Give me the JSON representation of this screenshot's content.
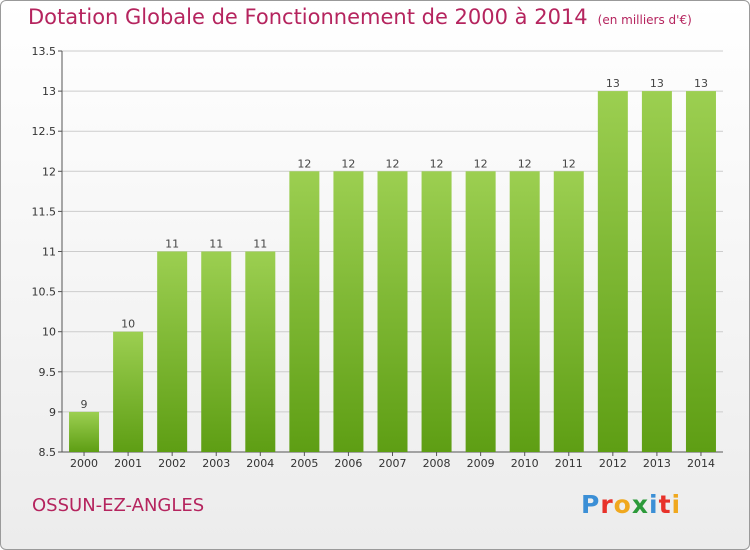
{
  "title": "Dotation Globale de Fonctionnement de 2000 à 2014",
  "unit_note": "(en milliers d'€)",
  "commune": "OSSUN-EZ-ANGLES",
  "logo": {
    "text": "Proxiti",
    "letters": [
      {
        "char": "P",
        "color": "#3b8fd6"
      },
      {
        "char": "r",
        "color": "#e8322a"
      },
      {
        "char": "o",
        "color": "#f0a81e"
      },
      {
        "char": "x",
        "color": "#2c9a3a"
      },
      {
        "char": "i",
        "color": "#3b8fd6"
      },
      {
        "char": "t",
        "color": "#e8322a"
      },
      {
        "char": "i",
        "color": "#f0a81e"
      }
    ]
  },
  "colors": {
    "title": "#b5245e",
    "bar_top": "#9ccf51",
    "bar_bottom": "#5e9e14",
    "grid": "#cccccc"
  },
  "chart_data": {
    "type": "bar",
    "title": "Dotation Globale de Fonctionnement de 2000 à 2014",
    "subtitle": "(en milliers d'€)",
    "xlabel": "",
    "ylabel": "",
    "categories": [
      "2000",
      "2001",
      "2002",
      "2003",
      "2004",
      "2005",
      "2006",
      "2007",
      "2008",
      "2009",
      "2010",
      "2011",
      "2012",
      "2013",
      "2014"
    ],
    "values": [
      9,
      10,
      11,
      11,
      11,
      12,
      12,
      12,
      12,
      12,
      12,
      12,
      13,
      13,
      13
    ],
    "data_labels": [
      "9",
      "10",
      "11",
      "11",
      "11",
      "12",
      "12",
      "12",
      "12",
      "12",
      "12",
      "12",
      "13",
      "13",
      "13"
    ],
    "ylim": [
      8.5,
      13.5
    ],
    "yticks": [
      8.5,
      9,
      9.5,
      10,
      10.5,
      11,
      11.5,
      12,
      12.5,
      13,
      13.5
    ],
    "ytick_labels": [
      "8.5",
      "9",
      "9.5",
      "10",
      "10.5",
      "11",
      "11.5",
      "12",
      "12.5",
      "13",
      "13.5"
    ],
    "grid": true,
    "legend": "none"
  }
}
